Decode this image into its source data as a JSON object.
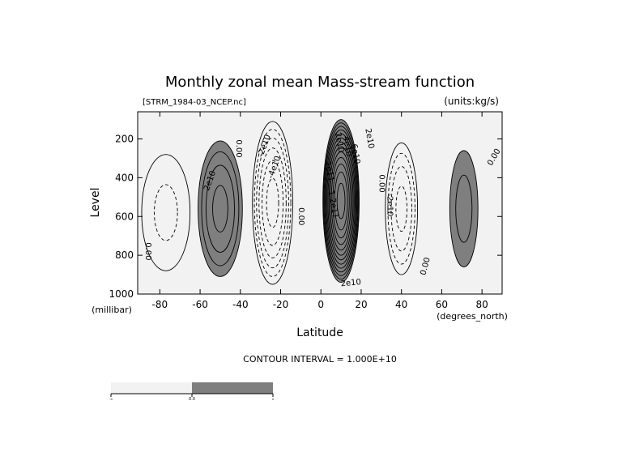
{
  "chart_data": {
    "type": "contour",
    "title": "Monthly zonal mean Mass-stream function",
    "file_label": "[STRM_1984-03_NCEP.nc]",
    "units_label": "(units:kg/s)",
    "xlabel": "Latitude",
    "x_units": "(degrees_north)",
    "ylabel": "Level",
    "y_units": "(millibar)",
    "xlim": [
      -91,
      90
    ],
    "ylim": [
      1000,
      60
    ],
    "x_ticks": [
      -80,
      -60,
      -40,
      -20,
      0,
      20,
      40,
      60,
      80
    ],
    "y_ticks": [
      200,
      400,
      600,
      800,
      1000
    ],
    "contour_interval_label": "CONTOUR INTERVAL = 1.000E+10",
    "contour_interval": 10000000000,
    "colors": {
      "negative": "#f2f2f2",
      "positive": "#7f7f7f",
      "line": "#000000"
    },
    "colorbar": {
      "labels": [
        "-∞",
        "0.0",
        "∞"
      ]
    },
    "cells": [
      {
        "name": "south-polar-negative",
        "lat_center": -77,
        "p_center": 580,
        "lat_radius": 12,
        "p_radius": 300,
        "peak": -1.3,
        "levels": [
          -1
        ]
      },
      {
        "name": "southern-ferrel-positive",
        "lat_center": -50,
        "p_center": 560,
        "lat_radius": 11,
        "p_radius": 350,
        "peak": 3.4,
        "levels": [
          1,
          2,
          3
        ]
      },
      {
        "name": "southern-hadley-negative",
        "lat_center": -24,
        "p_center": 530,
        "lat_radius": 10,
        "p_radius": 420,
        "peak": -5.5,
        "levels": [
          -1,
          -2,
          -3,
          -4,
          -5
        ]
      },
      {
        "name": "northern-hadley-positive",
        "lat_center": 10,
        "p_center": 520,
        "lat_radius": 9,
        "p_radius": 420,
        "peak": 12.6,
        "levels": [
          1,
          2,
          3,
          4,
          5,
          6,
          7,
          8,
          9,
          10,
          11,
          12
        ]
      },
      {
        "name": "northern-ferrel-negative",
        "lat_center": 40,
        "p_center": 560,
        "lat_radius": 8,
        "p_radius": 340,
        "peak": -3.4,
        "levels": [
          -1,
          -2,
          -3
        ]
      },
      {
        "name": "north-polar-positive",
        "lat_center": 71,
        "p_center": 560,
        "lat_radius": 7,
        "p_radius": 300,
        "peak": 1.5,
        "levels": [
          1
        ]
      }
    ],
    "annotations": [
      {
        "text": "2e10",
        "lat": -54,
        "p": 420,
        "angle": -70
      },
      {
        "text": "0.00",
        "lat": -42,
        "p": 250,
        "angle": 90
      },
      {
        "text": "-2e10",
        "lat": -27,
        "p": 240,
        "angle": -70
      },
      {
        "text": "-4e10",
        "lat": -22,
        "p": 350,
        "angle": -70
      },
      {
        "text": "0.00",
        "lat": -11,
        "p": 600,
        "angle": 90
      },
      {
        "text": "2e10",
        "lat": 8,
        "p": 220,
        "angle": 80
      },
      {
        "text": "4e10",
        "lat": 12,
        "p": 240,
        "angle": 80
      },
      {
        "text": "6e10",
        "lat": 16,
        "p": 280,
        "angle": 80
      },
      {
        "text": "1e11",
        "lat": 3,
        "p": 370,
        "angle": 80
      },
      {
        "text": "1.2e11",
        "lat": 5,
        "p": 540,
        "angle": 80
      },
      {
        "text": "2e10",
        "lat": 23,
        "p": 200,
        "angle": 80
      },
      {
        "text": "2e10",
        "lat": 15,
        "p": 955,
        "angle": -5
      },
      {
        "text": "0.00",
        "lat": 29,
        "p": 430,
        "angle": 90
      },
      {
        "text": "-2e10",
        "lat": 33,
        "p": 540,
        "angle": 90
      },
      {
        "text": "0.00",
        "lat": 53,
        "p": 860,
        "angle": -75
      },
      {
        "text": "0.00",
        "lat": 87,
        "p": 300,
        "angle": -60
      },
      {
        "text": "0.00",
        "lat": -87,
        "p": 780,
        "angle": 90
      }
    ]
  }
}
